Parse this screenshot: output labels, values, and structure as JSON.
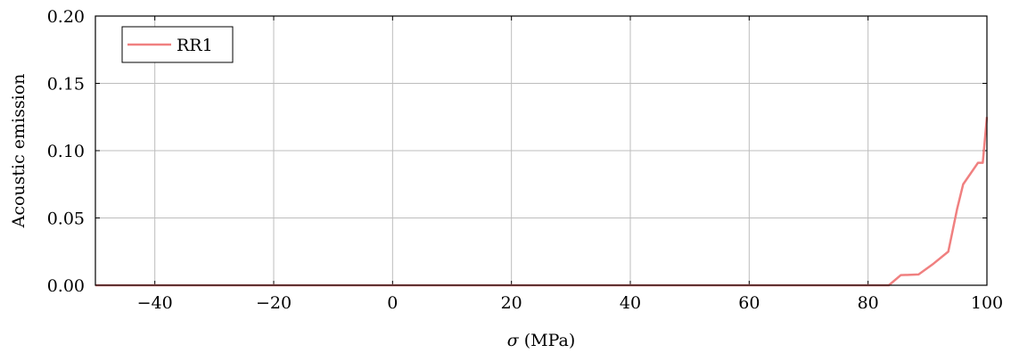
{
  "colors": {
    "series": "#f08080",
    "grid": "#bdbdbd",
    "axis": "#000000"
  },
  "chart_data": {
    "type": "line",
    "title": "",
    "xlabel_symbol": "σ",
    "xlabel_unit": "(MPa)",
    "ylabel": "Acoustic emission",
    "xlim": [
      -50,
      100
    ],
    "ylim": [
      0,
      0.2
    ],
    "xticks": [
      -40,
      -20,
      0,
      20,
      40,
      60,
      80,
      100
    ],
    "xtick_labels": [
      "−40",
      "−20",
      "0",
      "20",
      "40",
      "60",
      "80",
      "100"
    ],
    "yticks": [
      0,
      0.05,
      0.1,
      0.15,
      0.2
    ],
    "ytick_labels": [
      "0.00",
      "0.05",
      "0.10",
      "0.15",
      "0.20"
    ],
    "grid": true,
    "legend_position": "top-left",
    "series": [
      {
        "name": "RR1",
        "color": "#f08080",
        "x": [
          -50,
          83.5,
          85.5,
          88.5,
          91,
          93.5,
          95,
          96,
          98.5,
          99.3,
          100
        ],
        "y": [
          0,
          0,
          0.0075,
          0.008,
          0.016,
          0.025,
          0.057,
          0.075,
          0.091,
          0.091,
          0.125
        ]
      }
    ]
  }
}
